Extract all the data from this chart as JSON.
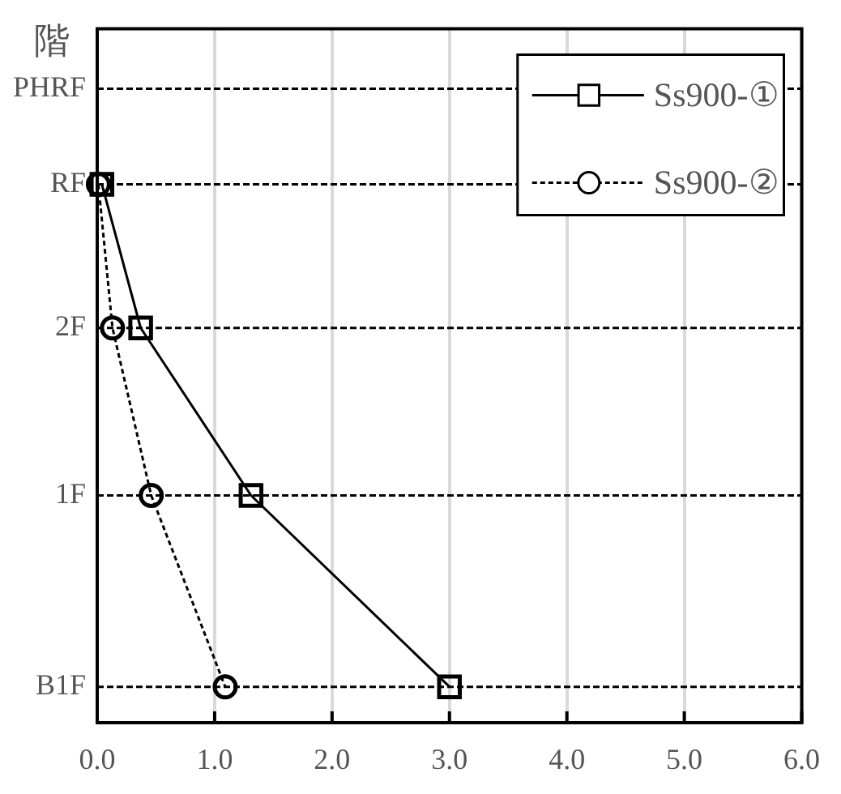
{
  "chart_data": {
    "type": "line",
    "orientation": "horizontal",
    "ylabel": "階",
    "categories": [
      "PHRF",
      null,
      null,
      null,
      "RF",
      null,
      null,
      null,
      null,
      null,
      "2F",
      null,
      null,
      null,
      null,
      null,
      null,
      "1F",
      null,
      null,
      null,
      null,
      null,
      null,
      null,
      "B1F"
    ],
    "xlim": [
      0,
      6
    ],
    "xticks": [
      {
        "value": 0,
        "label": "0.0"
      },
      {
        "value": 1,
        "label": "1.0"
      },
      {
        "value": 2,
        "label": "2.0"
      },
      {
        "value": 3,
        "label": "3.0"
      },
      {
        "value": 4,
        "label": "4.0"
      },
      {
        "value": 5,
        "label": "5.0"
      },
      {
        "value": 6,
        "label": "6.0"
      }
    ],
    "grid": true,
    "legend": "top right",
    "series": [
      {
        "name": "Ss900-①",
        "color": "#000000",
        "marker": "square",
        "line_style": "solid",
        "values": [
          null,
          null,
          null,
          null,
          0.04,
          null,
          null,
          null,
          null,
          null,
          0.37,
          null,
          null,
          null,
          null,
          null,
          null,
          1.31,
          null,
          null,
          null,
          null,
          null,
          null,
          null,
          3.0
        ]
      },
      {
        "name": "Ss900-②",
        "color": "#000000",
        "marker": "circle",
        "line_style": "dashed",
        "values": [
          null,
          null,
          null,
          null,
          0.01,
          null,
          null,
          null,
          null,
          null,
          0.13,
          null,
          null,
          null,
          null,
          null,
          null,
          0.46,
          null,
          null,
          null,
          null,
          null,
          null,
          null,
          1.09
        ]
      }
    ]
  }
}
